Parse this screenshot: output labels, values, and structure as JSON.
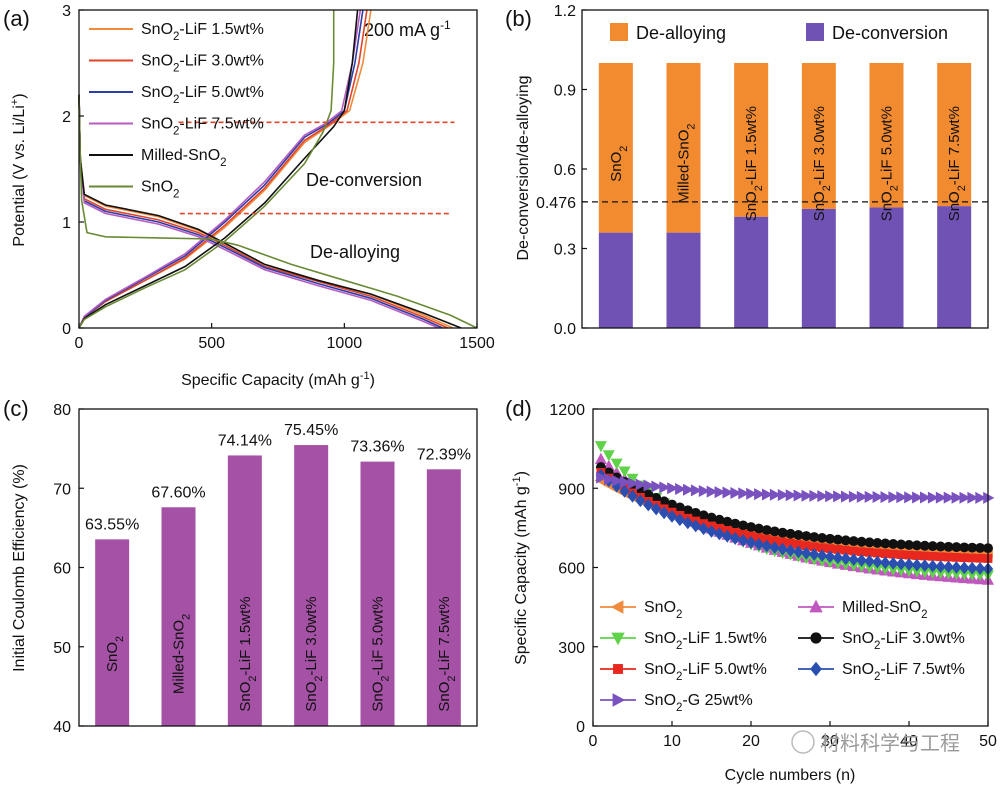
{
  "chart_data": [
    {
      "id": "a",
      "type": "line",
      "panel_label": "(a)",
      "xlabel": "Specific Capacity (mAh g",
      "xlabel_sup": "-1",
      "xlabel_tail": ")",
      "ylabel": "Potential (V vs. Li/Li",
      "ylabel_sup": "+",
      "ylabel_tail": ")",
      "xlim": [
        0,
        1500
      ],
      "ylim": [
        0,
        3
      ],
      "xticks": [
        "0",
        "500",
        "1000",
        "1500"
      ],
      "yticks": [
        "0",
        "1",
        "2",
        "3"
      ],
      "rate_label": "200 mA g",
      "rate_sup": "-1",
      "annotations": [
        "De-conversion",
        "De-alloying"
      ],
      "guide_lines": [
        {
          "x": [
            375,
            1415
          ],
          "y": 1.94,
          "color": "#e0452b"
        },
        {
          "x": [
            380,
            1395
          ],
          "y": 1.08,
          "color": "#e0452b"
        }
      ],
      "series": [
        {
          "name": "SnO2-LiF 1.5wt%",
          "base": "SnO",
          "sub": "2",
          "tail": "-LiF 1.5wt%",
          "color": "#f08a3c",
          "discharge": [
            [
              0,
              2.2
            ],
            [
              5,
              1.6
            ],
            [
              20,
              1.25
            ],
            [
              100,
              1.15
            ],
            [
              300,
              1.05
            ],
            [
              450,
              0.92
            ],
            [
              550,
              0.8
            ],
            [
              700,
              0.6
            ],
            [
              900,
              0.45
            ],
            [
              1100,
              0.32
            ],
            [
              1300,
              0.12
            ],
            [
              1410,
              0.0
            ]
          ],
          "charge": [
            [
              0,
              0.0
            ],
            [
              20,
              0.1
            ],
            [
              100,
              0.25
            ],
            [
              250,
              0.45
            ],
            [
              400,
              0.65
            ],
            [
              550,
              0.95
            ],
            [
              700,
              1.3
            ],
            [
              850,
              1.75
            ],
            [
              950,
              1.92
            ],
            [
              1020,
              2.05
            ],
            [
              1070,
              2.5
            ],
            [
              1100,
              3.0
            ]
          ]
        },
        {
          "name": "SnO2-LiF 3.0wt%",
          "base": "SnO",
          "sub": "2",
          "tail": "-LiF 3.0wt%",
          "color": "#e0452b",
          "discharge": [
            [
              0,
              2.2
            ],
            [
              5,
              1.6
            ],
            [
              20,
              1.22
            ],
            [
              100,
              1.12
            ],
            [
              300,
              1.02
            ],
            [
              450,
              0.9
            ],
            [
              550,
              0.78
            ],
            [
              700,
              0.58
            ],
            [
              900,
              0.44
            ],
            [
              1100,
              0.3
            ],
            [
              1300,
              0.1
            ],
            [
              1390,
              0.0
            ]
          ],
          "charge": [
            [
              0,
              0.0
            ],
            [
              20,
              0.1
            ],
            [
              100,
              0.25
            ],
            [
              250,
              0.45
            ],
            [
              400,
              0.66
            ],
            [
              550,
              0.97
            ],
            [
              700,
              1.32
            ],
            [
              850,
              1.77
            ],
            [
              950,
              1.93
            ],
            [
              1010,
              2.05
            ],
            [
              1055,
              2.5
            ],
            [
              1085,
              3.0
            ]
          ]
        },
        {
          "name": "SnO2-LiF 5.0wt%",
          "base": "SnO",
          "sub": "2",
          "tail": "-LiF 5.0wt%",
          "color": "#2d3ea8",
          "discharge": [
            [
              0,
              2.2
            ],
            [
              5,
              1.6
            ],
            [
              20,
              1.2
            ],
            [
              100,
              1.1
            ],
            [
              300,
              1.0
            ],
            [
              450,
              0.88
            ],
            [
              550,
              0.76
            ],
            [
              700,
              0.57
            ],
            [
              900,
              0.42
            ],
            [
              1100,
              0.28
            ],
            [
              1300,
              0.08
            ],
            [
              1370,
              0.0
            ]
          ],
          "charge": [
            [
              0,
              0.0
            ],
            [
              20,
              0.1
            ],
            [
              100,
              0.26
            ],
            [
              250,
              0.47
            ],
            [
              400,
              0.68
            ],
            [
              550,
              1.0
            ],
            [
              700,
              1.35
            ],
            [
              850,
              1.8
            ],
            [
              940,
              1.93
            ],
            [
              1000,
              2.05
            ],
            [
              1040,
              2.5
            ],
            [
              1070,
              3.0
            ]
          ]
        },
        {
          "name": "SnO2-LiF 7.5wt%",
          "base": "SnO",
          "sub": "2",
          "tail": "-LiF 7.5wt%",
          "color": "#b85cc0",
          "discharge": [
            [
              0,
              2.2
            ],
            [
              5,
              1.6
            ],
            [
              20,
              1.18
            ],
            [
              100,
              1.08
            ],
            [
              300,
              0.98
            ],
            [
              450,
              0.86
            ],
            [
              550,
              0.74
            ],
            [
              700,
              0.55
            ],
            [
              900,
              0.4
            ],
            [
              1100,
              0.26
            ],
            [
              1300,
              0.06
            ],
            [
              1355,
              0.0
            ]
          ],
          "charge": [
            [
              0,
              0.0
            ],
            [
              20,
              0.11
            ],
            [
              100,
              0.27
            ],
            [
              250,
              0.48
            ],
            [
              400,
              0.7
            ],
            [
              550,
              1.02
            ],
            [
              700,
              1.38
            ],
            [
              850,
              1.82
            ],
            [
              930,
              1.93
            ],
            [
              990,
              2.05
            ],
            [
              1030,
              2.5
            ],
            [
              1060,
              3.0
            ]
          ]
        },
        {
          "name": "Milled-SnO2",
          "base": "Milled-SnO",
          "sub": "2",
          "tail": "",
          "color": "#111111",
          "discharge": [
            [
              0,
              2.2
            ],
            [
              5,
              1.6
            ],
            [
              20,
              1.26
            ],
            [
              100,
              1.16
            ],
            [
              300,
              1.06
            ],
            [
              450,
              0.93
            ],
            [
              550,
              0.8
            ],
            [
              700,
              0.6
            ],
            [
              900,
              0.45
            ],
            [
              1100,
              0.32
            ],
            [
              1300,
              0.14
            ],
            [
              1440,
              0.0
            ]
          ],
          "charge": [
            [
              0,
              0.0
            ],
            [
              20,
              0.09
            ],
            [
              100,
              0.22
            ],
            [
              250,
              0.4
            ],
            [
              400,
              0.58
            ],
            [
              550,
              0.85
            ],
            [
              700,
              1.18
            ],
            [
              850,
              1.6
            ],
            [
              960,
              1.9
            ],
            [
              1000,
              2.05
            ],
            [
              1030,
              2.5
            ],
            [
              1050,
              3.0
            ]
          ]
        },
        {
          "name": "SnO2",
          "base": "SnO",
          "sub": "2",
          "tail": "",
          "color": "#6a8a35",
          "discharge": [
            [
              0,
              2.2
            ],
            [
              5,
              1.6
            ],
            [
              10,
              1.2
            ],
            [
              30,
              0.9
            ],
            [
              100,
              0.86
            ],
            [
              300,
              0.85
            ],
            [
              500,
              0.84
            ],
            [
              600,
              0.78
            ],
            [
              800,
              0.6
            ],
            [
              1000,
              0.45
            ],
            [
              1200,
              0.3
            ],
            [
              1400,
              0.12
            ],
            [
              1500,
              0.0
            ]
          ],
          "charge": [
            [
              0,
              0.0
            ],
            [
              20,
              0.08
            ],
            [
              100,
              0.2
            ],
            [
              250,
              0.38
            ],
            [
              400,
              0.55
            ],
            [
              550,
              0.82
            ],
            [
              700,
              1.15
            ],
            [
              850,
              1.55
            ],
            [
              920,
              1.85
            ],
            [
              950,
              2.05
            ],
            [
              960,
              2.5
            ],
            [
              960,
              3.0
            ]
          ]
        }
      ]
    },
    {
      "id": "b",
      "type": "bar",
      "stacked": true,
      "panel_label": "(b)",
      "ylabel": "De-conversion/de-alloying",
      "ylim": [
        0,
        1.2
      ],
      "yticks": [
        "0.0",
        "0.3",
        "0.476",
        "0.6",
        "0.9",
        "1.2"
      ],
      "ytick_values": [
        0,
        0.3,
        0.476,
        0.6,
        0.9,
        1.2
      ],
      "reference_line": 0.476,
      "legend": [
        {
          "name": "De-alloying",
          "color": "#f28a30"
        },
        {
          "name": "De-conversion",
          "color": "#7052b4"
        }
      ],
      "categories": [
        {
          "base": "SnO",
          "sub": "2",
          "tail": ""
        },
        {
          "base": "Milled-SnO",
          "sub": "2",
          "tail": ""
        },
        {
          "base": "SnO",
          "sub": "2",
          "tail": "-LiF 1.5wt%"
        },
        {
          "base": "SnO",
          "sub": "2",
          "tail": "-LiF 3.0wt%"
        },
        {
          "base": "SnO",
          "sub": "2",
          "tail": "-LiF 5.0wt%"
        },
        {
          "base": "SnO",
          "sub": "2",
          "tail": "-LiF 7.5wt%"
        }
      ],
      "series": [
        {
          "name": "De-conversion",
          "values": [
            0.36,
            0.36,
            0.42,
            0.45,
            0.455,
            0.46
          ]
        },
        {
          "name": "De-alloying",
          "values": [
            0.64,
            0.64,
            0.58,
            0.55,
            0.545,
            0.54
          ]
        }
      ]
    },
    {
      "id": "c",
      "type": "bar",
      "panel_label": "(c)",
      "ylabel": "Initial Coulomb Efficiency (%)",
      "ylim": [
        40,
        80
      ],
      "yticks": [
        "40",
        "50",
        "60",
        "70",
        "80"
      ],
      "bar_color": "#a552a6",
      "categories": [
        {
          "base": "SnO",
          "sub": "2",
          "tail": ""
        },
        {
          "base": "Milled-SnO",
          "sub": "2",
          "tail": ""
        },
        {
          "base": "SnO",
          "sub": "2",
          "tail": "-LiF 1.5wt%"
        },
        {
          "base": "SnO",
          "sub": "2",
          "tail": "-LiF 3.0wt%"
        },
        {
          "base": "SnO",
          "sub": "2",
          "tail": "-LiF 5.0wt%"
        },
        {
          "base": "SnO",
          "sub": "2",
          "tail": "-LiF 7.5wt%"
        }
      ],
      "values": [
        63.55,
        67.6,
        74.14,
        75.45,
        73.36,
        72.39
      ],
      "value_labels": [
        "63.55%",
        "67.60%",
        "74.14%",
        "75.45%",
        "73.36%",
        "72.39%"
      ]
    },
    {
      "id": "d",
      "type": "scatter",
      "panel_label": "(d)",
      "xlabel": "Cycle numbers (n)",
      "ylabel": "Specific Capacity (mAh g",
      "ylabel_sup": "-1",
      "ylabel_tail": ")",
      "xlim": [
        0,
        50
      ],
      "ylim": [
        0,
        1200
      ],
      "xticks": [
        "0",
        "10",
        "20",
        "30",
        "40",
        "50"
      ],
      "yticks": [
        "0",
        "300",
        "600",
        "900",
        "1200"
      ],
      "series": [
        {
          "name": "SnO2",
          "base": "SnO",
          "sub": "2",
          "tail": "",
          "color": "#f08a3c",
          "marker": "tri-left",
          "start": 930,
          "end": 640,
          "k": 0.06
        },
        {
          "name": "Milled-SnO2",
          "base": "Milled-SnO",
          "sub": "2",
          "tail": "",
          "color": "#c058c0",
          "marker": "tri-up",
          "start": 1010,
          "end": 520,
          "k": 0.055
        },
        {
          "name": "SnO2-LiF 1.5wt%",
          "base": "SnO",
          "sub": "2",
          "tail": "-LiF 1.5wt%",
          "color": "#5fd24a",
          "marker": "tri-down",
          "start": 1060,
          "end": 555,
          "k": 0.07
        },
        {
          "name": "SnO2-LiF 3.0wt%",
          "base": "SnO",
          "sub": "2",
          "tail": "-LiF 3.0wt%",
          "color": "#111111",
          "marker": "circle",
          "start": 980,
          "end": 660,
          "k": 0.065
        },
        {
          "name": "SnO2-LiF 5.0wt%",
          "base": "SnO",
          "sub": "2",
          "tail": "-LiF 5.0wt%",
          "color": "#e8281e",
          "marker": "square",
          "start": 960,
          "end": 620,
          "k": 0.065
        },
        {
          "name": "SnO2-LiF 7.5wt%",
          "base": "SnO",
          "sub": "2",
          "tail": "-LiF 7.5wt%",
          "color": "#2a4fb0",
          "marker": "diamond",
          "start": 950,
          "end": 575,
          "k": 0.06
        },
        {
          "name": "SnO2-G 25wt%",
          "base": "SnO",
          "sub": "2",
          "tail": "-G 25wt%",
          "color": "#7a52c0",
          "marker": "tri-right",
          "start": 940,
          "end": 862,
          "k": 0.08
        }
      ]
    }
  ],
  "watermark": "材料科学与工程"
}
